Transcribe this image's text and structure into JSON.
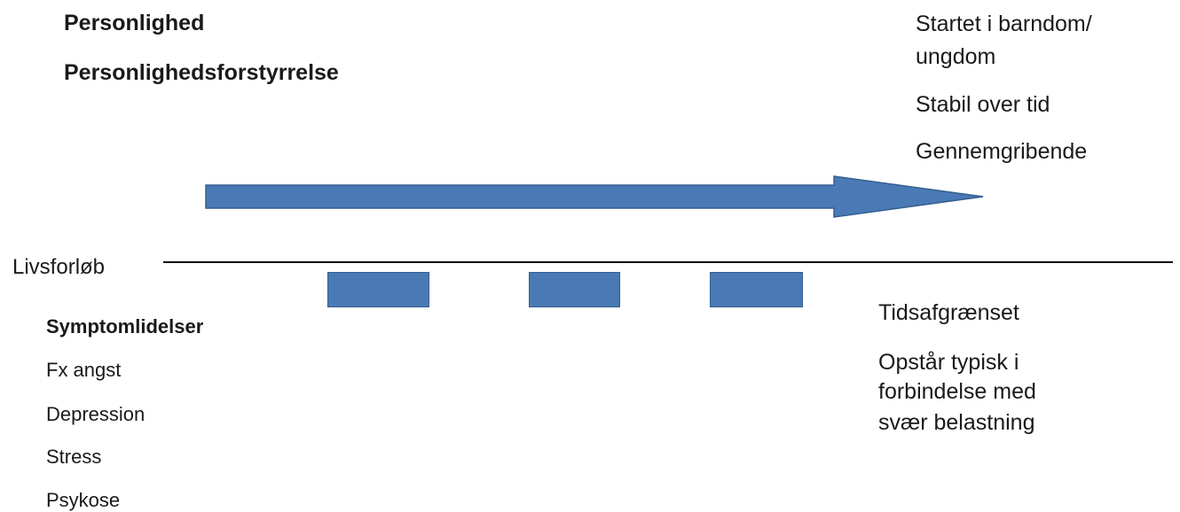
{
  "top_left": {
    "heading_1": "Personlighed",
    "heading_2": "Personlighedsforstyrrelse"
  },
  "top_right": {
    "line_1a": "Startet i barndom/",
    "line_1b": "ungdom",
    "line_2": "Stabil over tid",
    "line_3": "Gennemgribende"
  },
  "lifeline": {
    "label": "Livsforløb"
  },
  "bottom_left": {
    "heading": "Symptomlidelser",
    "items": [
      "Fx angst",
      "Depression",
      "Stress",
      "Psykose"
    ]
  },
  "bottom_right": {
    "line_1": "Tidsafgrænset",
    "line_2a": "Opstår typisk i",
    "line_2b": "forbindelse med",
    "line_2c": "svær belastning"
  },
  "colors": {
    "shape_fill": "#4a7ab5",
    "shape_stroke": "#355e91",
    "line": "#000000",
    "text": "#1a1a1a"
  },
  "icons": {
    "arrow": "right-arrow-icon"
  }
}
